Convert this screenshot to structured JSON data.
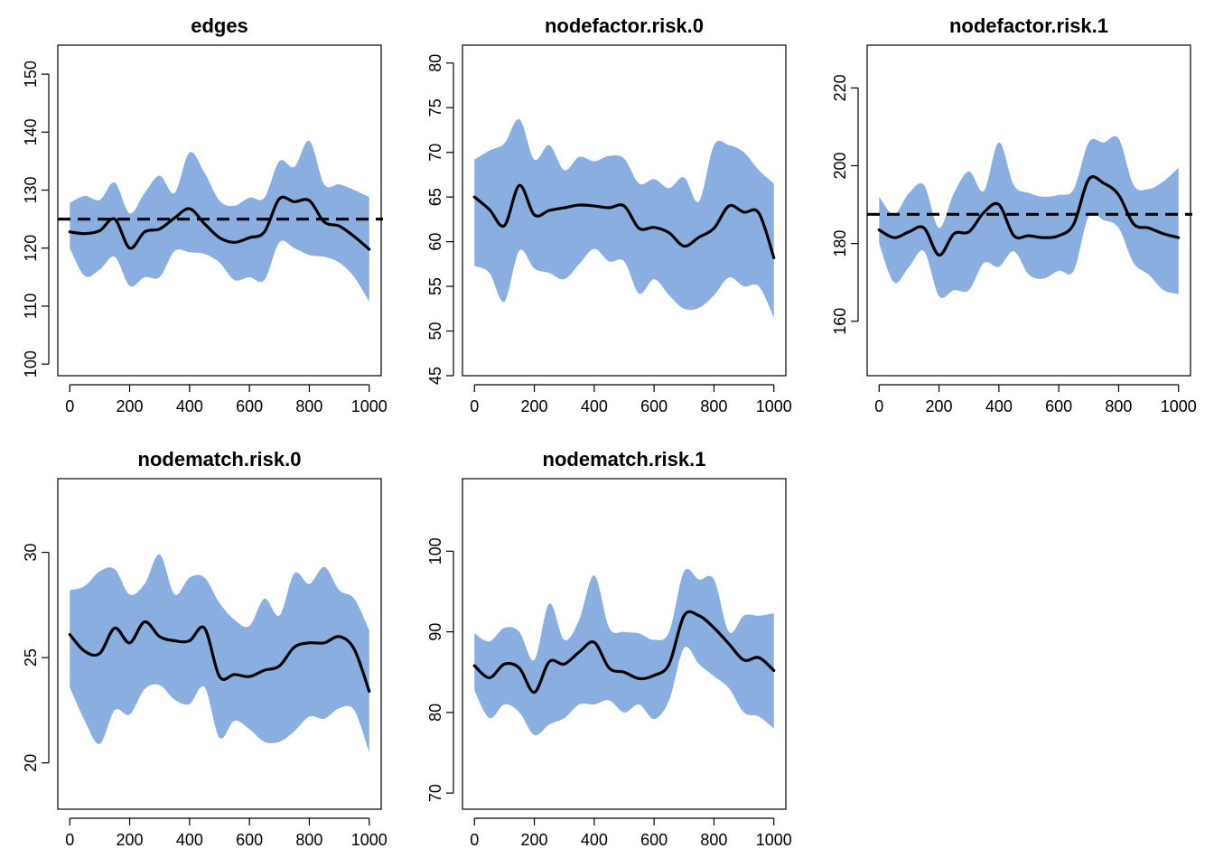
{
  "colors": {
    "band": "#8aaee0",
    "line": "#000000",
    "target": "#000000"
  },
  "chart_data": [
    {
      "type": "area",
      "title": "edges",
      "xlabel": "",
      "ylabel": "",
      "xlim": [
        0,
        1000
      ],
      "ylim": [
        98,
        155
      ],
      "xticks": [
        0,
        200,
        400,
        600,
        800,
        1000
      ],
      "yticks": [
        100,
        110,
        120,
        130,
        140,
        150
      ],
      "target": 125,
      "x": [
        0,
        50,
        100,
        150,
        200,
        250,
        300,
        350,
        400,
        450,
        500,
        550,
        600,
        650,
        700,
        750,
        800,
        850,
        900,
        950,
        1000
      ],
      "mean": [
        122.8,
        122.5,
        123.0,
        125.0,
        120.0,
        122.8,
        123.3,
        125.2,
        126.8,
        124.2,
        121.8,
        121.0,
        121.8,
        122.8,
        128.5,
        128.0,
        128.2,
        124.5,
        123.8,
        122.0,
        119.8
      ],
      "upper": [
        127.8,
        129.0,
        128.3,
        131.3,
        126.0,
        129.5,
        132.5,
        129.5,
        136.5,
        133.0,
        128.2,
        127.3,
        128.7,
        128.7,
        135.0,
        134.0,
        138.5,
        131.0,
        131.0,
        130.0,
        128.8
      ],
      "lower": [
        120.0,
        115.2,
        116.3,
        118.5,
        113.5,
        115.0,
        115.0,
        119.5,
        119.3,
        119.0,
        117.5,
        114.5,
        115.0,
        114.5,
        121.0,
        120.0,
        118.8,
        118.5,
        117.5,
        115.0,
        110.8
      ]
    },
    {
      "type": "area",
      "title": "nodefactor.risk.0",
      "xlabel": "",
      "ylabel": "",
      "xlim": [
        0,
        1000
      ],
      "ylim": [
        45,
        82
      ],
      "xticks": [
        0,
        200,
        400,
        600,
        800,
        1000
      ],
      "yticks": [
        45,
        50,
        55,
        60,
        65,
        70,
        75,
        80
      ],
      "x": [
        0,
        50,
        100,
        150,
        200,
        250,
        300,
        350,
        400,
        450,
        500,
        550,
        600,
        650,
        700,
        750,
        800,
        850,
        900,
        950,
        1000
      ],
      "mean": [
        65.0,
        63.6,
        61.8,
        66.3,
        63.0,
        63.5,
        63.8,
        64.1,
        64.0,
        63.8,
        64.0,
        61.5,
        61.6,
        61.0,
        59.5,
        60.5,
        61.5,
        64.0,
        63.3,
        63.2,
        58.2
      ],
      "upper": [
        69.2,
        70.2,
        71.0,
        73.7,
        69.2,
        70.8,
        68.0,
        69.5,
        69.0,
        69.6,
        69.3,
        66.5,
        67.0,
        66.0,
        67.2,
        64.5,
        70.8,
        70.8,
        70.0,
        68.0,
        66.5
      ],
      "lower": [
        57.3,
        56.5,
        53.3,
        59.0,
        57.0,
        56.5,
        55.8,
        57.5,
        59.2,
        57.8,
        57.8,
        54.2,
        55.8,
        54.0,
        52.5,
        52.6,
        54.0,
        56.0,
        55.0,
        55.0,
        51.5
      ]
    },
    {
      "type": "area",
      "title": "nodefactor.risk.1",
      "xlabel": "",
      "ylabel": "",
      "xlim": [
        0,
        1000
      ],
      "ylim": [
        146,
        231
      ],
      "xticks": [
        0,
        200,
        400,
        600,
        800,
        1000
      ],
      "yticks": [
        160,
        180,
        200,
        220
      ],
      "target": 187.5,
      "x": [
        0,
        50,
        100,
        150,
        200,
        250,
        300,
        350,
        400,
        450,
        500,
        550,
        600,
        650,
        700,
        750,
        800,
        850,
        900,
        950,
        1000
      ],
      "mean": [
        183.5,
        181.5,
        183.0,
        184.0,
        177.0,
        182.5,
        183.0,
        188.0,
        190.0,
        182.0,
        182.0,
        181.5,
        182.0,
        185.0,
        196.5,
        195.5,
        192.5,
        185.0,
        184.0,
        182.5,
        181.5
      ],
      "upper": [
        192.0,
        187.5,
        193.0,
        195.0,
        184.0,
        193.0,
        198.5,
        193.5,
        206.0,
        195.0,
        193.0,
        192.0,
        192.5,
        194.0,
        206.0,
        206.0,
        207.0,
        195.0,
        194.0,
        196.0,
        199.5
      ],
      "lower": [
        180.0,
        170.0,
        174.0,
        178.0,
        166.5,
        168.0,
        168.0,
        175.0,
        174.0,
        178.0,
        172.0,
        171.0,
        173.0,
        173.0,
        187.0,
        186.0,
        184.0,
        175.0,
        172.0,
        168.0,
        167.0
      ]
    },
    {
      "type": "area",
      "title": "nodematch.risk.0",
      "xlabel": "",
      "ylabel": "",
      "xlim": [
        0,
        1000
      ],
      "ylim": [
        17.8,
        33.5
      ],
      "xticks": [
        0,
        200,
        400,
        600,
        800,
        1000
      ],
      "yticks": [
        20,
        25,
        30
      ],
      "x": [
        0,
        50,
        100,
        150,
        200,
        250,
        300,
        350,
        400,
        450,
        500,
        550,
        600,
        650,
        700,
        750,
        800,
        850,
        900,
        950,
        1000
      ],
      "mean": [
        26.1,
        25.3,
        25.2,
        26.4,
        25.7,
        26.7,
        26.0,
        25.8,
        25.8,
        26.4,
        24.1,
        24.2,
        24.1,
        24.4,
        24.6,
        25.5,
        25.7,
        25.7,
        26.0,
        25.4,
        23.4
      ],
      "upper": [
        28.2,
        28.4,
        29.1,
        29.2,
        28.0,
        28.5,
        29.9,
        28.0,
        28.8,
        28.8,
        27.6,
        26.8,
        26.5,
        27.8,
        27.0,
        29.0,
        28.5,
        29.3,
        28.2,
        27.8,
        26.3
      ],
      "lower": [
        23.6,
        22.0,
        20.9,
        22.5,
        22.3,
        23.5,
        23.7,
        23.0,
        22.8,
        23.6,
        21.2,
        22.0,
        21.6,
        21.0,
        21.0,
        21.5,
        22.2,
        22.1,
        22.6,
        22.5,
        20.5
      ]
    },
    {
      "type": "area",
      "title": "nodematch.risk.1",
      "xlabel": "",
      "ylabel": "",
      "xlim": [
        0,
        1000
      ],
      "ylim": [
        68,
        109
      ],
      "xticks": [
        0,
        200,
        400,
        600,
        800,
        1000
      ],
      "yticks": [
        70,
        80,
        90,
        100
      ],
      "x": [
        0,
        50,
        100,
        150,
        200,
        250,
        300,
        350,
        400,
        450,
        500,
        550,
        600,
        650,
        700,
        750,
        800,
        850,
        900,
        950,
        1000
      ],
      "mean": [
        85.8,
        84.3,
        86.0,
        85.5,
        82.5,
        86.3,
        86.0,
        87.5,
        88.7,
        85.5,
        85.0,
        84.2,
        84.6,
        86.0,
        92.0,
        92.0,
        90.5,
        88.5,
        86.5,
        86.8,
        85.2
      ],
      "upper": [
        89.8,
        88.8,
        90.5,
        90.0,
        86.5,
        93.5,
        89.0,
        91.5,
        97.0,
        90.5,
        90.0,
        89.8,
        89.0,
        90.0,
        97.5,
        96.5,
        96.5,
        90.0,
        92.0,
        92.0,
        92.3
      ],
      "lower": [
        82.7,
        79.3,
        81.0,
        80.0,
        77.2,
        78.5,
        79.3,
        81.0,
        81.0,
        81.5,
        80.0,
        81.0,
        79.2,
        81.5,
        88.0,
        86.0,
        84.5,
        83.0,
        80.0,
        79.5,
        78.0
      ]
    }
  ]
}
